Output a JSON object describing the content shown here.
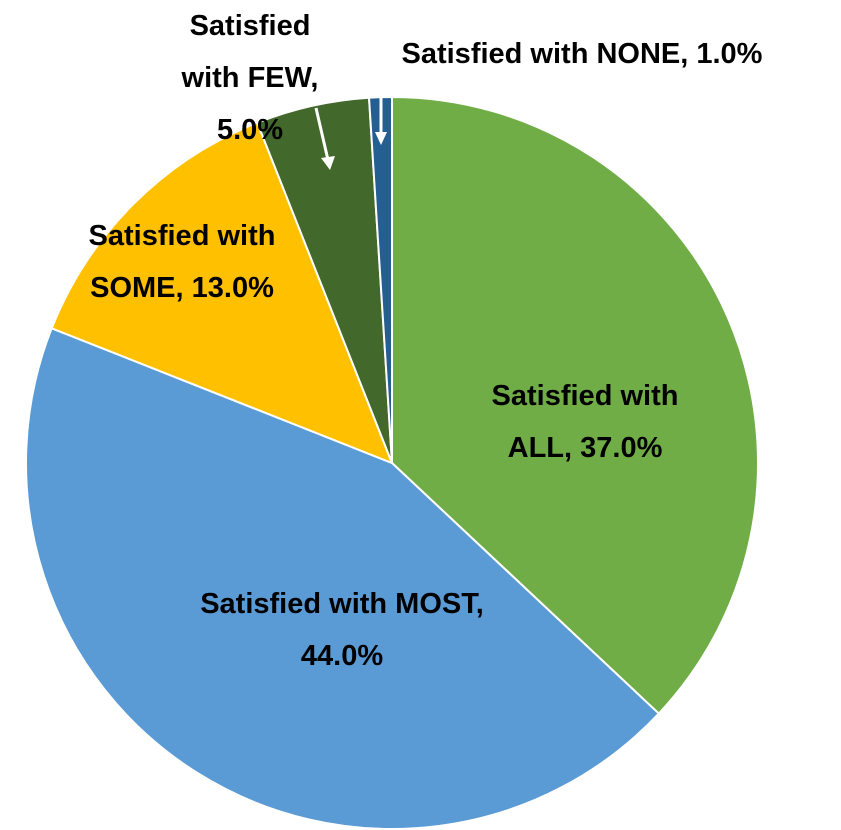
{
  "chart_data": {
    "type": "pie",
    "values": [
      37,
      44,
      13,
      5,
      1
    ],
    "value_labels": [
      "Satisfied with ALL, 37.0%",
      "Satisfied with MOST, 44.0%",
      "Satisfied with SOME, 13.0%",
      "Satisfied with FEW, 5.0%",
      "Satisfied with NONE, 1.0%"
    ],
    "colors": [
      "#70ad47",
      "#5b9bd5",
      "#ffc000",
      "#43682b",
      "#255e91"
    ]
  }
}
